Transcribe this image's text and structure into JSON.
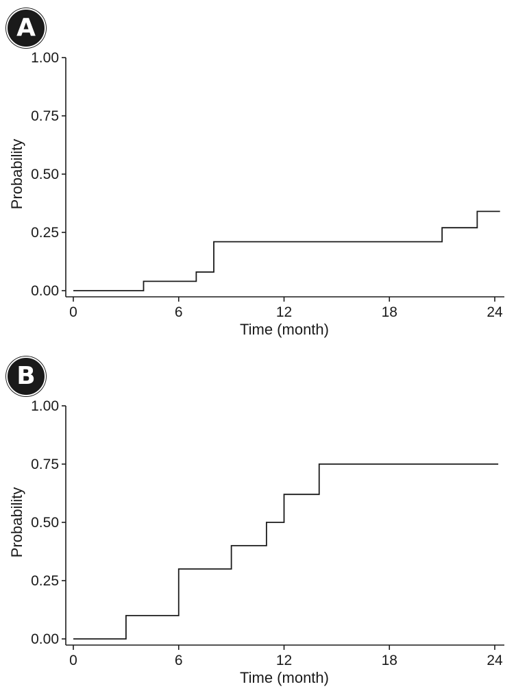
{
  "chart_data": [
    {
      "panel_label": "A",
      "type": "line",
      "step": true,
      "xlabel": "Time (month)",
      "ylabel": "Probability",
      "xlim": [
        0,
        24
      ],
      "ylim": [
        0,
        1
      ],
      "x_ticks": [
        "0",
        "6",
        "12",
        "18",
        "24"
      ],
      "y_ticks": [
        "0.00",
        "0.25",
        "0.50",
        "0.75",
        "1.00"
      ],
      "grid": false,
      "series": [
        {
          "line_color": "#1a1a1a",
          "x": [
            0,
            4,
            7,
            8,
            21,
            23,
            24.3
          ],
          "y": [
            0.0,
            0.04,
            0.08,
            0.21,
            0.27,
            0.34,
            0.34
          ]
        }
      ]
    },
    {
      "panel_label": "B",
      "type": "line",
      "step": true,
      "xlabel": "Time (month)",
      "ylabel": "Probability",
      "xlim": [
        0,
        24
      ],
      "ylim": [
        0,
        1
      ],
      "x_ticks": [
        "0",
        "6",
        "12",
        "18",
        "24"
      ],
      "y_ticks": [
        "0.00",
        "0.25",
        "0.50",
        "0.75",
        "1.00"
      ],
      "grid": false,
      "series": [
        {
          "line_color": "#1a1a1a",
          "x": [
            0,
            3,
            6,
            9,
            11,
            12,
            14,
            24.2
          ],
          "y": [
            0.0,
            0.1,
            0.3,
            0.4,
            0.5,
            0.62,
            0.75,
            0.75
          ]
        }
      ]
    }
  ]
}
